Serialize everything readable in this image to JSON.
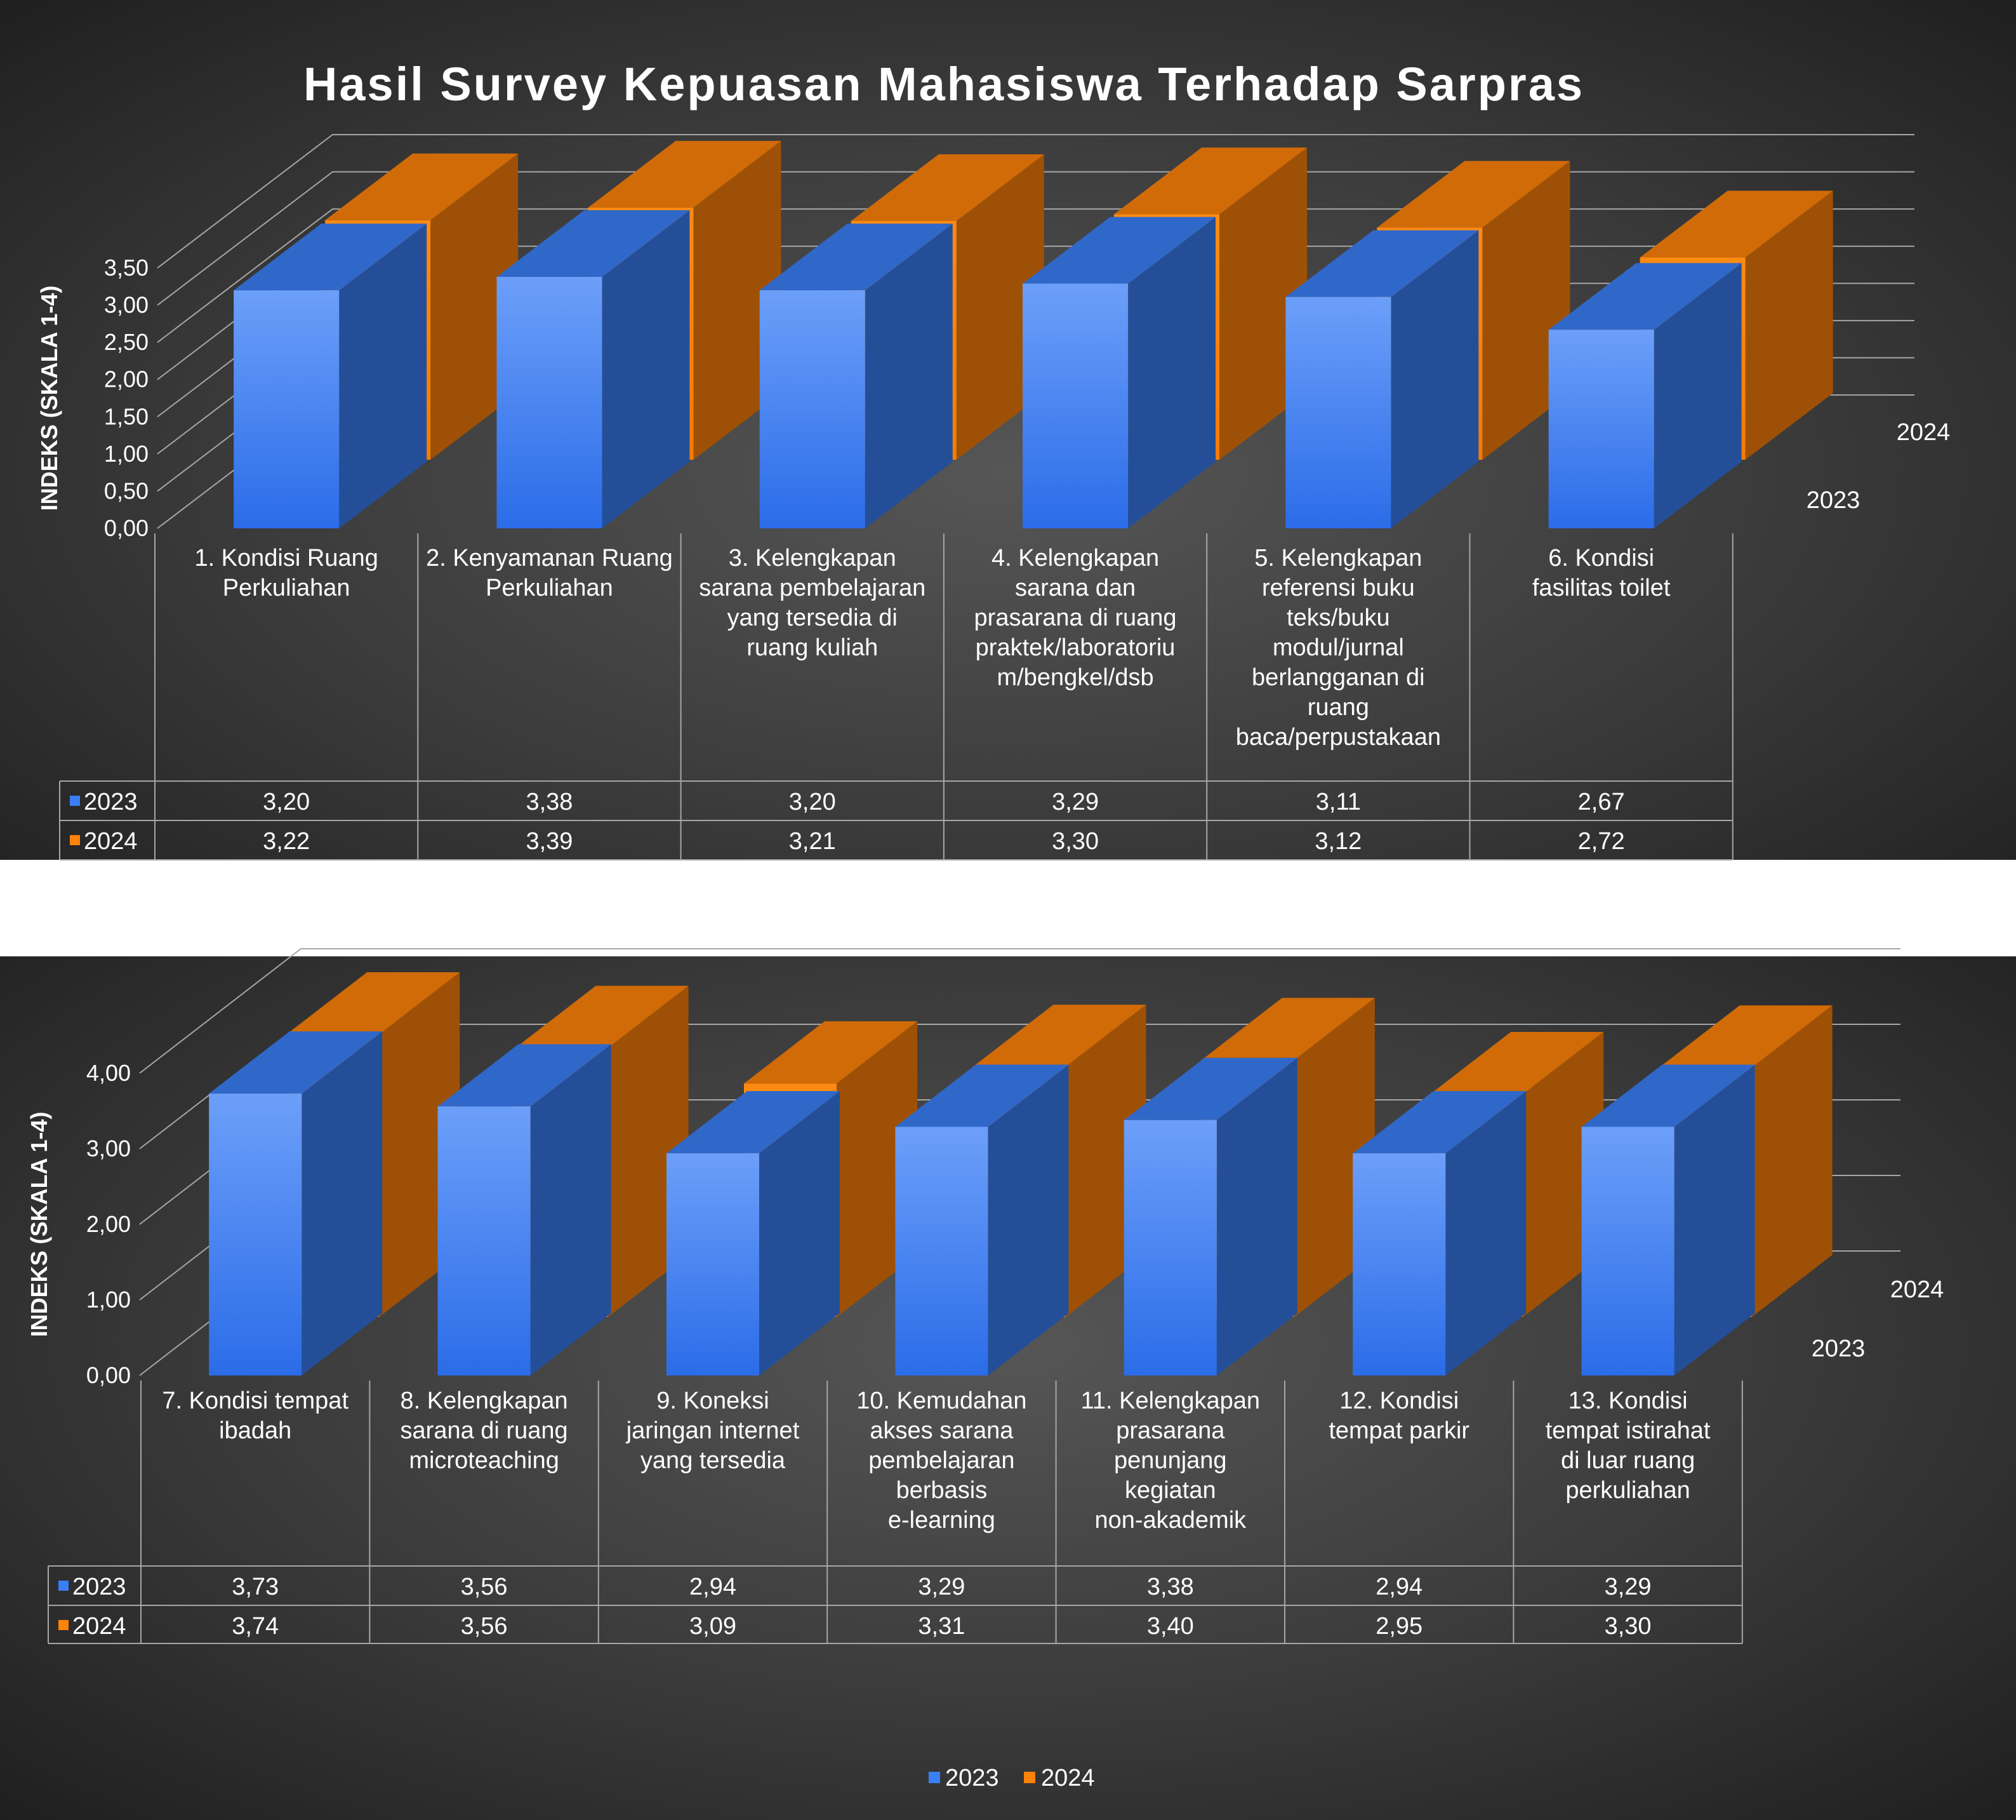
{
  "colors": {
    "s2023": "#3a7ff5",
    "s2024": "#ff8209",
    "text": "#ffffff",
    "grid": "#a6a6a6"
  },
  "chart_data": [
    {
      "type": "bar",
      "title": "Hasil Survey Kepuasan Mahasiswa Terhadap Sarpras",
      "ylabel": "INDEKS (SKALA 1-4)",
      "ylim": [
        0,
        3.5
      ],
      "yticks": [
        "0,00",
        "0,50",
        "1,00",
        "1,50",
        "2,00",
        "2,50",
        "3,00",
        "3,50"
      ],
      "depth_labels": [
        "2023",
        "2024"
      ],
      "categories": [
        "1. Kondisi Ruang Perkuliahan",
        "2. Kenyamanan Ruang Perkuliahan",
        "3. Kelengkapan sarana pembelajaran yang tersedia di ruang kuliah",
        "4. Kelengkapan sarana dan prasarana di ruang praktek/laboratorium/bengkel/dsb",
        "5. Kelengkapan referensi buku teks/buku modul/jurnal berlangganan di ruang baca/perpustakaan",
        "6. Kondisi fasilitas toilet"
      ],
      "series": [
        {
          "name": "2023",
          "values": [
            3.2,
            3.38,
            3.2,
            3.29,
            3.11,
            2.67
          ],
          "labels": [
            "3,20",
            "3,38",
            "3,20",
            "3,29",
            "3,11",
            "2,67"
          ]
        },
        {
          "name": "2024",
          "values": [
            3.22,
            3.39,
            3.21,
            3.3,
            3.12,
            2.72
          ],
          "labels": [
            "3,22",
            "3,39",
            "3,21",
            "3,30",
            "3,12",
            "2,72"
          ]
        }
      ]
    },
    {
      "type": "bar",
      "title": "",
      "ylabel": "INDEKS (SKALA 1-4)",
      "ylim": [
        0,
        4
      ],
      "yticks": [
        "0,00",
        "1,00",
        "2,00",
        "3,00",
        "4,00"
      ],
      "depth_labels": [
        "2023",
        "2024"
      ],
      "categories": [
        "7. Kondisi tempat ibadah",
        "8. Kelengkapan sarana di ruang microteaching",
        "9. Koneksi jaringan internet yang tersedia",
        "10. Kemudahan akses sarana pembelajaran berbasis e-learning",
        "11. Kelengkapan prasarana penunjang kegiatan non-akademik",
        "12. Kondisi tempat parkir",
        "13. Kondisi tempat istirahat di luar ruang perkuliahan"
      ],
      "series": [
        {
          "name": "2023",
          "values": [
            3.73,
            3.56,
            2.94,
            3.29,
            3.38,
            2.94,
            3.29
          ],
          "labels": [
            "3,73",
            "3,56",
            "2,94",
            "3,29",
            "3,38",
            "2,94",
            "3,29"
          ]
        },
        {
          "name": "2024",
          "values": [
            3.74,
            3.56,
            3.09,
            3.31,
            3.4,
            2.95,
            3.3
          ],
          "labels": [
            "3,74",
            "3,56",
            "3,09",
            "3,31",
            "3,40",
            "2,95",
            "3,30"
          ]
        }
      ]
    }
  ],
  "legend": {
    "items": [
      "2023",
      "2024"
    ]
  }
}
